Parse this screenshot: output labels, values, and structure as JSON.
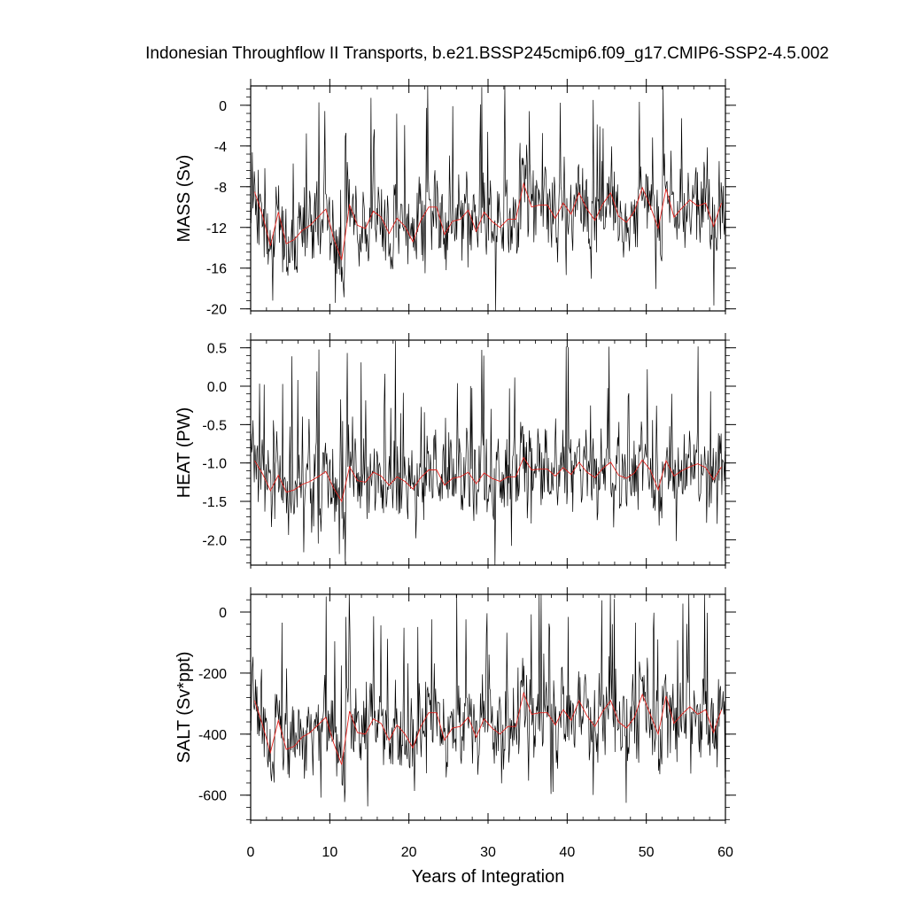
{
  "title": "Indonesian Throughflow II Transports, b.e21.BSSP245cmip6.f09_g17.CMIP6-SSP2-4.5.002",
  "xlabel": "Years of Integration",
  "colors": {
    "monthly": "#000000",
    "annual": "#e3211c",
    "axes": "#000000"
  },
  "chart_data": [
    {
      "type": "line",
      "ylabel": "MASS (Sv)",
      "xlim": [
        0,
        60
      ],
      "ylim": [
        -20.2,
        1.9
      ],
      "xticks": [
        0,
        10,
        20,
        30,
        40,
        50,
        60
      ],
      "yticks": [
        0,
        -4,
        -8,
        -12,
        -16,
        -20
      ],
      "ytick_labels": [
        "0",
        "-4",
        "-8",
        "-12",
        "-16",
        "-20"
      ],
      "annual_mean_values": [
        -8.5,
        -10.8,
        -13.8,
        -10.5,
        -13.6,
        -13.2,
        -12.3,
        -11.8,
        -11.0,
        -10.2,
        -13.1,
        -15.2,
        -9.8,
        -11.8,
        -12.1,
        -10.4,
        -11.0,
        -12.6,
        -11.1,
        -11.9,
        -13.4,
        -11.3,
        -10.0,
        -10.0,
        -12.7,
        -11.4,
        -11.2,
        -10.3,
        -12.4,
        -10.5,
        -11.4,
        -12.0,
        -11.2,
        -11.2,
        -7.7,
        -10.0,
        -9.8,
        -9.8,
        -11.1,
        -9.6,
        -10.7,
        -8.6,
        -10.2,
        -11.3,
        -9.7,
        -8.6,
        -10.9,
        -11.5,
        -10.4,
        -8.1,
        -9.9,
        -12.1,
        -8.2,
        -11.0,
        -10.1,
        -9.3,
        -9.9,
        -9.6,
        -11.9,
        -9.6
      ],
      "monthly_range": [
        -20.2,
        1.9
      ],
      "monthly_note": "720 monthly values oscillating around the annual means"
    },
    {
      "type": "line",
      "ylabel": "HEAT (PW)",
      "xlim": [
        0,
        60
      ],
      "ylim": [
        -2.33,
        0.6
      ],
      "xticks": [
        0,
        10,
        20,
        30,
        40,
        50,
        60
      ],
      "yticks": [
        0.5,
        0.0,
        -0.5,
        -1.0,
        -1.5,
        -2.0
      ],
      "ytick_labels": [
        "0.5",
        "0.0",
        "-0.5",
        "-1.0",
        "-1.5",
        "-2.0"
      ],
      "annual_mean_values": [
        -0.97,
        -1.14,
        -1.36,
        -1.16,
        -1.38,
        -1.35,
        -1.28,
        -1.24,
        -1.18,
        -1.11,
        -1.33,
        -1.5,
        -1.05,
        -1.23,
        -1.25,
        -1.12,
        -1.17,
        -1.29,
        -1.18,
        -1.24,
        -1.34,
        -1.19,
        -1.09,
        -1.09,
        -1.29,
        -1.2,
        -1.18,
        -1.12,
        -1.27,
        -1.13,
        -1.2,
        -1.24,
        -1.18,
        -1.18,
        -0.93,
        -1.09,
        -1.08,
        -1.08,
        -1.17,
        -1.06,
        -1.15,
        -0.99,
        -1.12,
        -1.19,
        -1.07,
        -0.99,
        -1.16,
        -1.2,
        -1.13,
        -0.96,
        -1.09,
        -1.35,
        -0.97,
        -1.17,
        -1.1,
        -1.05,
        -1.01,
        -1.06,
        -1.22,
        -1.05
      ],
      "monthly_range": [
        -2.33,
        0.6
      ],
      "monthly_note": "720 monthly values oscillating around the annual means"
    },
    {
      "type": "line",
      "ylabel": "SALT (Sv*ppt)",
      "xlim": [
        0,
        60
      ],
      "ylim": [
        -682,
        58
      ],
      "xticks": [
        0,
        10,
        20,
        30,
        40,
        50,
        60
      ],
      "yticks": [
        0,
        -200,
        -400,
        -600
      ],
      "ytick_labels": [
        "0",
        "-200",
        "-400",
        "-600"
      ],
      "annual_mean_values": [
        -290,
        -370,
        -460,
        -355,
        -450,
        -440,
        -410,
        -395,
        -370,
        -345,
        -430,
        -500,
        -325,
        -395,
        -400,
        -350,
        -365,
        -420,
        -370,
        -400,
        -445,
        -375,
        -330,
        -330,
        -420,
        -380,
        -375,
        -345,
        -410,
        -350,
        -380,
        -400,
        -375,
        -375,
        -265,
        -335,
        -330,
        -330,
        -370,
        -320,
        -355,
        -290,
        -340,
        -375,
        -325,
        -290,
        -360,
        -380,
        -345,
        -270,
        -335,
        -400,
        -275,
        -365,
        -335,
        -310,
        -335,
        -320,
        -395,
        -320
      ],
      "monthly_range": [
        -682,
        58
      ],
      "monthly_note": "720 monthly values oscillating around the annual means"
    }
  ]
}
